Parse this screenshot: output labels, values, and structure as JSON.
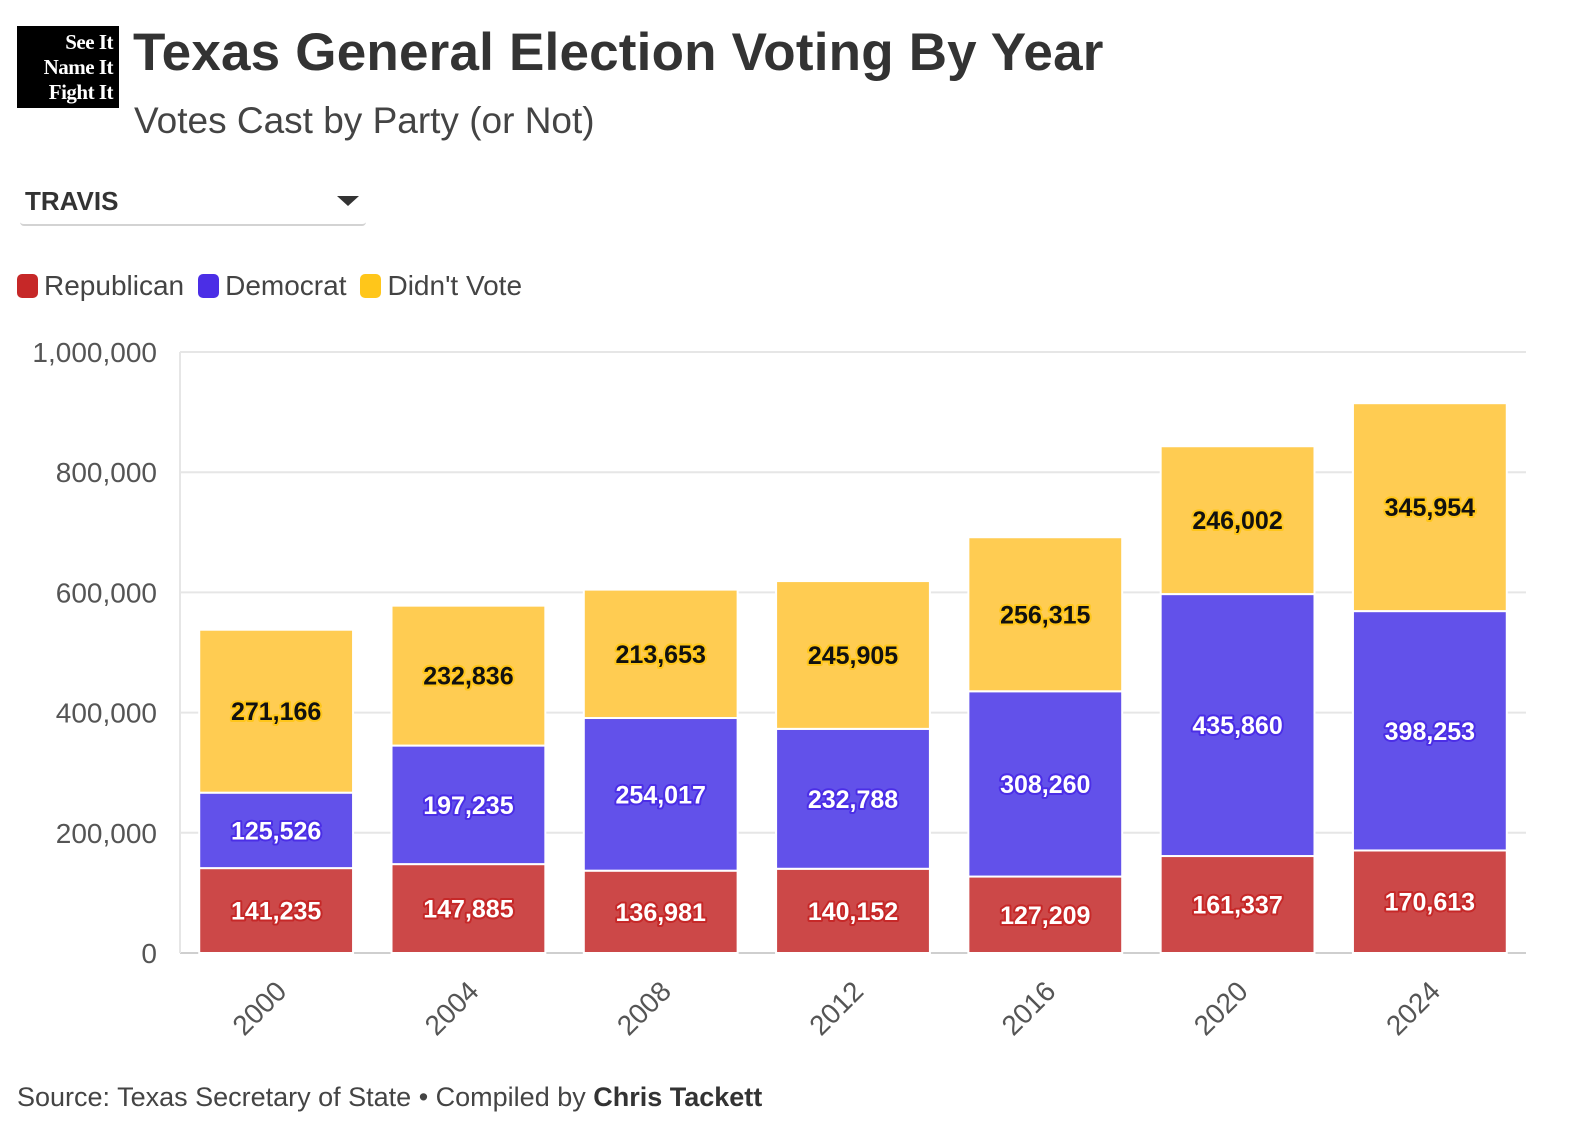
{
  "logo": {
    "lines": [
      "See It",
      "Name It",
      "Fight It"
    ]
  },
  "header": {
    "title": "Texas General Election Voting By Year",
    "subtitle": "Votes Cast by Party (or Not)"
  },
  "selector": {
    "value": "TRAVIS"
  },
  "footer": {
    "source": "Source: Texas Secretary of State • Compiled by ",
    "author": "Chris Tackett"
  },
  "colors": {
    "republican": "#CC4848",
    "democrat": "#6251EA",
    "didnt_vote": "#FFCC52",
    "legend_republican": "#C62828",
    "legend_democrat": "#4B2EE6",
    "legend_didnt_vote": "#FFC61A",
    "gridline": "#e6e6e6"
  },
  "chart_data": {
    "type": "bar",
    "stacked": true,
    "categories": [
      "2000",
      "2004",
      "2008",
      "2012",
      "2016",
      "2020",
      "2024"
    ],
    "series": [
      {
        "name": "Republican",
        "values": [
          141235,
          147885,
          136981,
          140152,
          127209,
          161337,
          170613
        ]
      },
      {
        "name": "Democrat",
        "values": [
          125526,
          197235,
          254017,
          232788,
          308260,
          435860,
          398253
        ]
      },
      {
        "name": "Didn't Vote",
        "values": [
          271166,
          232836,
          213653,
          245905,
          256315,
          246002,
          345954
        ]
      }
    ],
    "ylim": [
      0,
      1000000
    ],
    "yticks": [
      0,
      200000,
      400000,
      600000,
      800000,
      1000000
    ],
    "ytick_labels": [
      "0",
      "200,000",
      "400,000",
      "600,000",
      "800,000",
      "1,000,000"
    ],
    "grid": true,
    "legend_position": "top-left",
    "data_labels": true
  }
}
